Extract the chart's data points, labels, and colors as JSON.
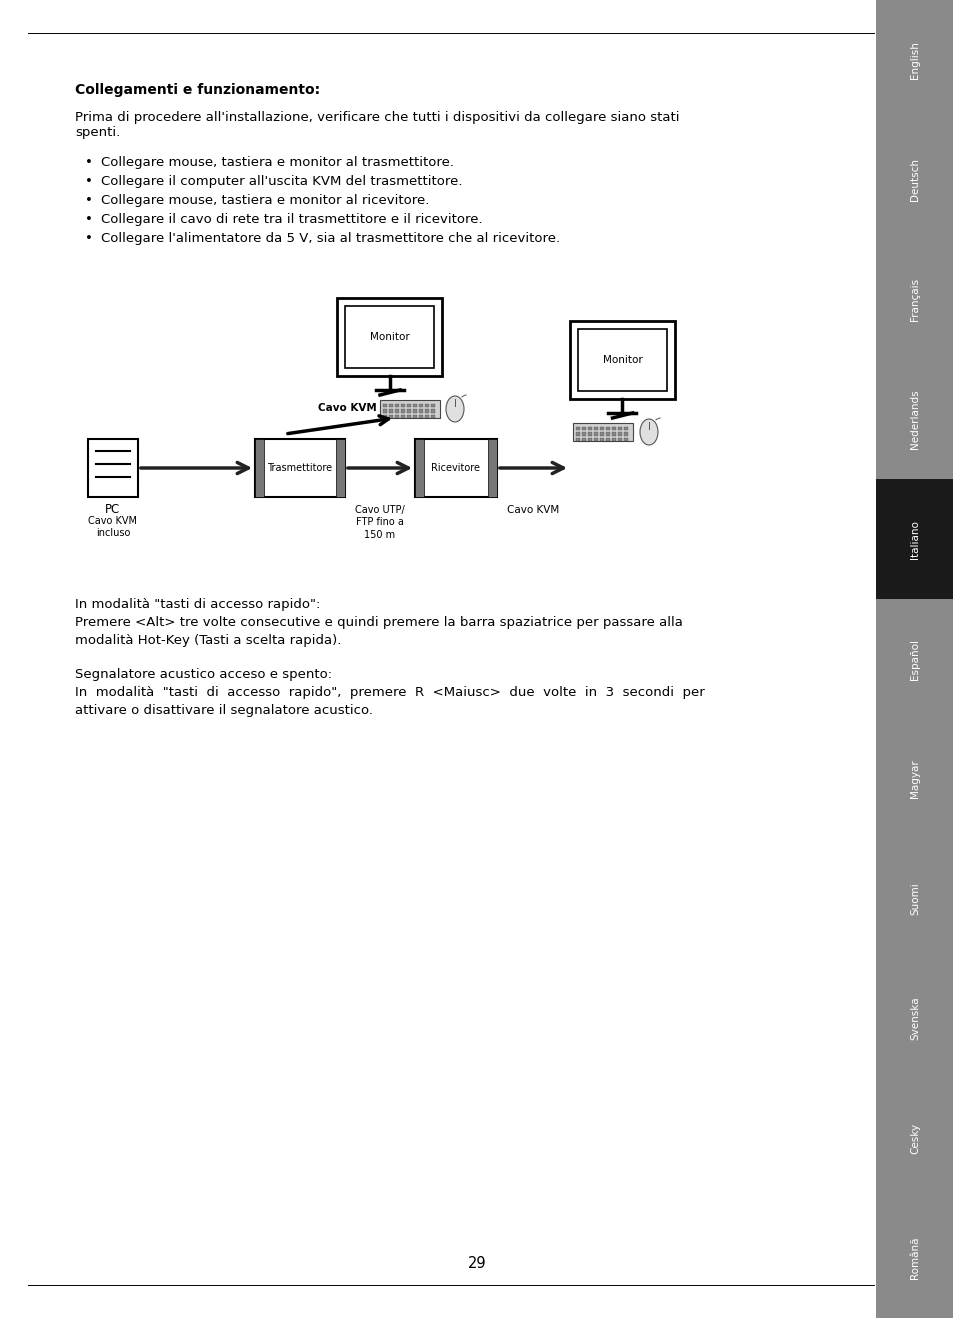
{
  "bg_color": "#ffffff",
  "sidebar_color": "#8a8a8a",
  "sidebar_active_color": "#1a1a1a",
  "languages": [
    "English",
    "Deutsch",
    "Français",
    "Nederlands",
    "Italiano",
    "Español",
    "Magyar",
    "Suomi",
    "Svenska",
    "Cesky",
    "Română"
  ],
  "active_language": "Italiano",
  "title": "Collegamenti e funzionamento:",
  "intro_line1": "Prima di procedere all'installazione, verificare che tutti i dispositivi da collegare siano stati",
  "intro_line2": "spenti.",
  "bullets": [
    "Collegare mouse, tastiera e monitor al trasmettitore.",
    "Collegare il computer all'uscita KVM del trasmettitore.",
    "Collegare mouse, tastiera e monitor al ricevitore.",
    "Collegare il cavo di rete tra il trasmettitore e il ricevitore.",
    "Collegare l'alimentatore da 5 V, sia al trasmettitore che al ricevitore."
  ],
  "footer_page": "29",
  "para1_line1": "In modalità \"tasti di accesso rapido\":",
  "para1_line2": "Premere <Alt> tre volte consecutive e quindi premere la barra spaziatrice per passare alla",
  "para1_line3": "modalità Hot-Key (Tasti a scelta rapida).",
  "para2_line1": "Segnalatore acustico acceso e spento:",
  "para2_line2": "In  modalità  \"tasti  di  accesso  rapido\",  premere  R  <Maiusc>  due  volte  in  3  secondi  per",
  "para2_line3": "attivare o disattivare il segnalatore acustico."
}
